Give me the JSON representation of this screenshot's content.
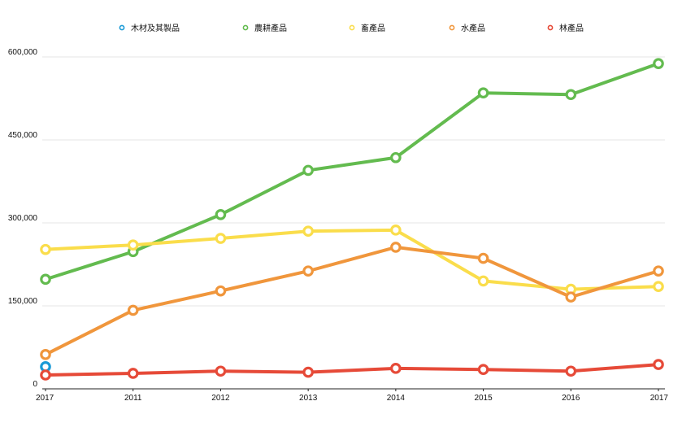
{
  "chart_data": {
    "type": "line",
    "title": "",
    "xlabel": "",
    "ylabel": "",
    "categories": [
      "2017",
      "2011",
      "2012",
      "2013",
      "2014",
      "2015",
      "2016",
      "2017"
    ],
    "ylim": [
      0,
      600000
    ],
    "yticks": [
      0,
      150000,
      300000,
      450000,
      600000
    ],
    "ytick_labels": [
      "0",
      "150,000",
      "300,000",
      "450,000",
      "600,000"
    ],
    "grid": true,
    "legend_position": "top",
    "series": [
      {
        "name": "木材及其製品",
        "color": "#1a9ad6",
        "values": [
          40000,
          null,
          null,
          null,
          null,
          null,
          null,
          null
        ]
      },
      {
        "name": "農耕產品",
        "color": "#63bb4f",
        "values": [
          198000,
          248000,
          315000,
          395000,
          418000,
          535000,
          532000,
          588000
        ]
      },
      {
        "name": "畜產品",
        "color": "#fadd4b",
        "values": [
          252000,
          260000,
          272000,
          285000,
          287000,
          195000,
          180000,
          185000
        ]
      },
      {
        "name": "水產品",
        "color": "#f0963c",
        "values": [
          62000,
          142000,
          177000,
          213000,
          256000,
          236000,
          166000,
          213000
        ]
      },
      {
        "name": "林產品",
        "color": "#e64a38",
        "values": [
          25000,
          28000,
          32000,
          30000,
          37000,
          35000,
          32000,
          44000
        ]
      }
    ]
  }
}
